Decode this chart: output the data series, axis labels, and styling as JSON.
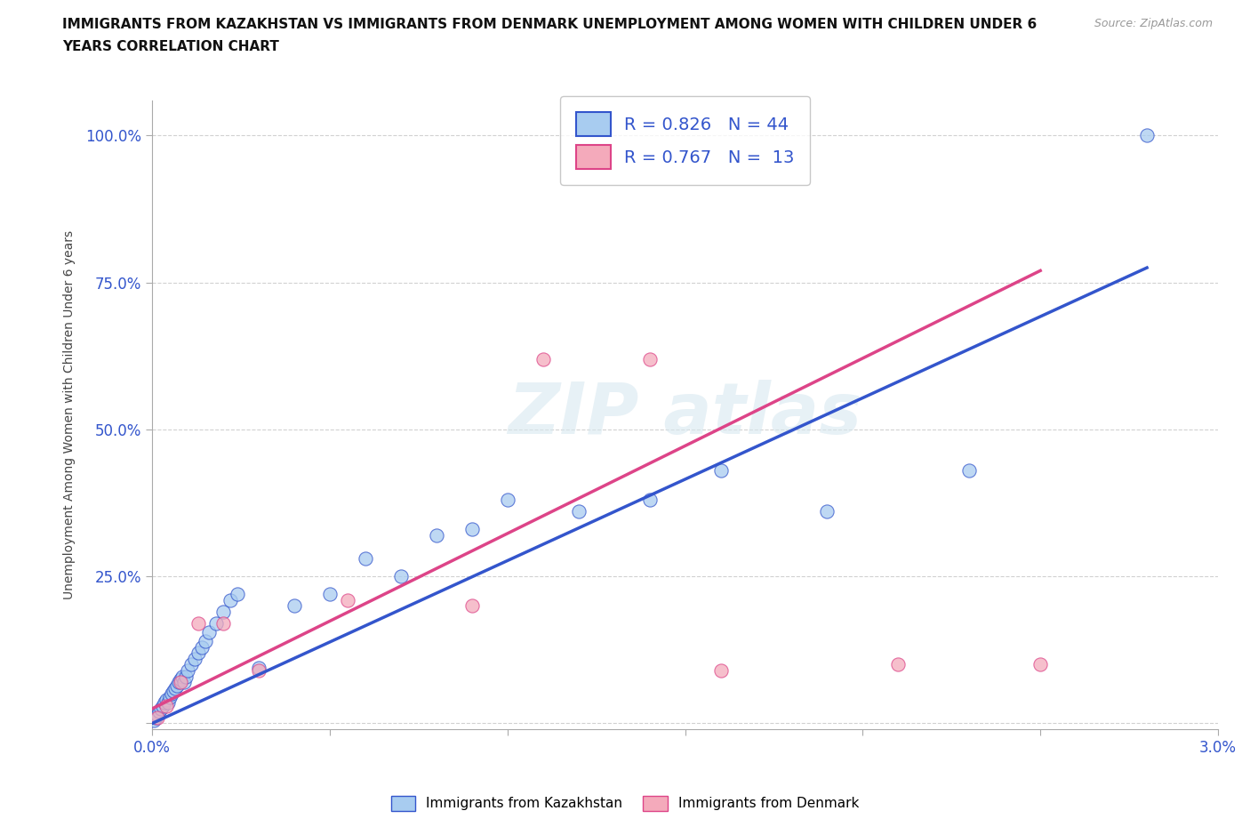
{
  "title_line1": "IMMIGRANTS FROM KAZAKHSTAN VS IMMIGRANTS FROM DENMARK UNEMPLOYMENT AMONG WOMEN WITH CHILDREN UNDER 6",
  "title_line2": "YEARS CORRELATION CHART",
  "source": "Source: ZipAtlas.com",
  "ylabel": "Unemployment Among Women with Children Under 6 years",
  "xlim": [
    0.0,
    0.03
  ],
  "ylim": [
    -0.01,
    1.06
  ],
  "xticks": [
    0.0,
    0.005,
    0.01,
    0.015,
    0.02,
    0.025,
    0.03
  ],
  "xtick_labels": [
    "0.0%",
    "",
    "",
    "",
    "",
    "",
    "3.0%"
  ],
  "yticks": [
    0.0,
    0.25,
    0.5,
    0.75,
    1.0
  ],
  "ytick_labels": [
    "",
    "25.0%",
    "50.0%",
    "75.0%",
    "100.0%"
  ],
  "kazakhstan_color": "#A8CCF0",
  "denmark_color": "#F4AABB",
  "line_color_kaz": "#3355CC",
  "line_color_den": "#DD4488",
  "R_kaz": 0.826,
  "N_kaz": 44,
  "R_den": 0.767,
  "N_den": 13,
  "kazakhstan_x": [
    5e-05,
    0.0001,
    0.00015,
    0.0002,
    0.00025,
    0.0003,
    0.00035,
    0.0004,
    0.00045,
    0.0005,
    0.00055,
    0.0006,
    0.00065,
    0.0007,
    0.00075,
    0.0008,
    0.00085,
    0.0009,
    0.00095,
    0.001,
    0.0011,
    0.0012,
    0.0013,
    0.0014,
    0.0015,
    0.0016,
    0.0018,
    0.002,
    0.0022,
    0.0024,
    0.003,
    0.004,
    0.005,
    0.006,
    0.007,
    0.008,
    0.009,
    0.01,
    0.012,
    0.014,
    0.016,
    0.019,
    0.023,
    0.028
  ],
  "kazakhstan_y": [
    0.005,
    0.01,
    0.015,
    0.02,
    0.025,
    0.03,
    0.035,
    0.04,
    0.035,
    0.045,
    0.05,
    0.055,
    0.06,
    0.065,
    0.07,
    0.075,
    0.08,
    0.07,
    0.08,
    0.09,
    0.1,
    0.11,
    0.12,
    0.13,
    0.14,
    0.155,
    0.17,
    0.19,
    0.21,
    0.22,
    0.095,
    0.2,
    0.22,
    0.28,
    0.25,
    0.32,
    0.33,
    0.38,
    0.36,
    0.38,
    0.43,
    0.36,
    0.43,
    1.0
  ],
  "denmark_x": [
    0.00015,
    0.0004,
    0.0008,
    0.0013,
    0.002,
    0.003,
    0.0055,
    0.009,
    0.011,
    0.014,
    0.016,
    0.021,
    0.025
  ],
  "denmark_y": [
    0.01,
    0.03,
    0.07,
    0.17,
    0.17,
    0.09,
    0.21,
    0.2,
    0.62,
    0.62,
    0.09,
    0.1,
    0.1
  ],
  "line_kaz_x0": 0.0,
  "line_kaz_y0": 0.0,
  "line_kaz_x1": 0.028,
  "line_kaz_y1": 0.775,
  "line_den_x0": 0.0,
  "line_den_y0": 0.025,
  "line_den_x1": 0.025,
  "line_den_y1": 0.77
}
